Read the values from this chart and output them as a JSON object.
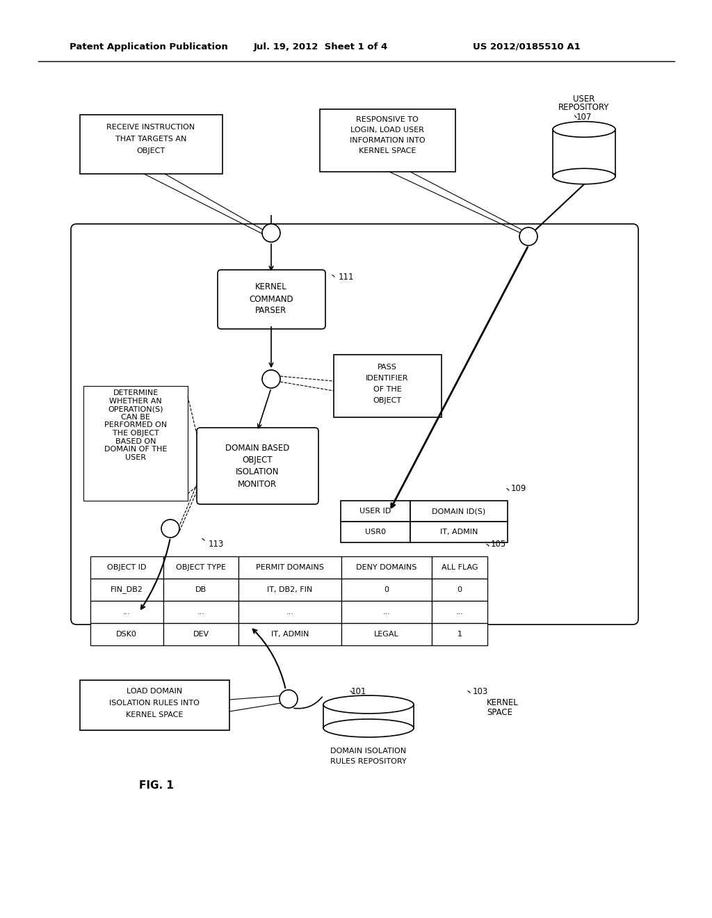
{
  "bg_color": "#ffffff",
  "header_left": "Patent Application Publication",
  "header_mid": "Jul. 19, 2012  Sheet 1 of 4",
  "header_right": "US 2012/0185510 A1",
  "fig_label": "FIG. 1"
}
